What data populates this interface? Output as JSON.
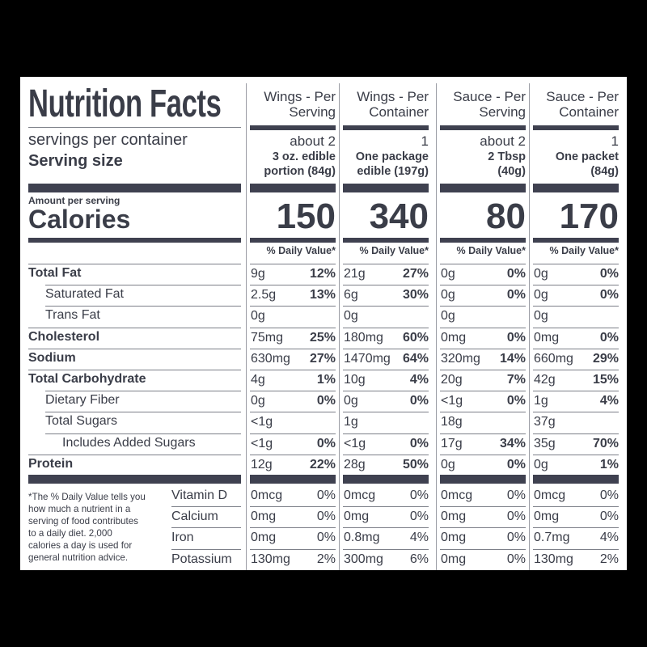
{
  "title": "Nutrition Facts",
  "servings_label": "servings per container",
  "serving_size_label": "Serving size",
  "amount_per_serving": "Amount per serving",
  "calories_label": "Calories",
  "dv_label": "% Daily Value*",
  "columns": [
    {
      "head1": "Wings - Per",
      "head2": "Serving",
      "servings": "about 2",
      "size1": "3 oz. edible",
      "size2": "portion (84g)",
      "calories": "150"
    },
    {
      "head1": "Wings - Per",
      "head2": "Container",
      "servings": "1",
      "size1": "One package",
      "size2": "edible (197g)",
      "calories": "340"
    },
    {
      "head1": "Sauce - Per",
      "head2": "Serving",
      "servings": "about 2",
      "size1": "2 Tbsp",
      "size2": "(40g)",
      "calories": "80"
    },
    {
      "head1": "Sauce - Per",
      "head2": "Container",
      "servings": "1",
      "size1": "One packet",
      "size2": "(84g)",
      "calories": "170"
    }
  ],
  "nutrients": [
    {
      "label": "Total Fat",
      "bold": true,
      "indent": 0,
      "values": [
        [
          "9g",
          "12%"
        ],
        [
          "21g",
          "27%"
        ],
        [
          "0g",
          "0%"
        ],
        [
          "0g",
          "0%"
        ]
      ]
    },
    {
      "label": "Saturated Fat",
      "bold": false,
      "indent": 1,
      "values": [
        [
          "2.5g",
          "13%"
        ],
        [
          "6g",
          "30%"
        ],
        [
          "0g",
          "0%"
        ],
        [
          "0g",
          "0%"
        ]
      ]
    },
    {
      "label": "Trans Fat",
      "bold": false,
      "indent": 1,
      "values": [
        [
          "0g",
          ""
        ],
        [
          "0g",
          ""
        ],
        [
          "0g",
          ""
        ],
        [
          "0g",
          ""
        ]
      ]
    },
    {
      "label": "Cholesterol",
      "bold": true,
      "indent": 0,
      "values": [
        [
          "75mg",
          "25%"
        ],
        [
          "180mg",
          "60%"
        ],
        [
          "0mg",
          "0%"
        ],
        [
          "0mg",
          "0%"
        ]
      ]
    },
    {
      "label": "Sodium",
      "bold": true,
      "indent": 0,
      "values": [
        [
          "630mg",
          "27%"
        ],
        [
          "1470mg",
          "64%"
        ],
        [
          "320mg",
          "14%"
        ],
        [
          "660mg",
          "29%"
        ]
      ]
    },
    {
      "label": "Total Carbohydrate",
      "bold": true,
      "indent": 0,
      "values": [
        [
          "4g",
          "1%"
        ],
        [
          "10g",
          "4%"
        ],
        [
          "20g",
          "7%"
        ],
        [
          "42g",
          "15%"
        ]
      ]
    },
    {
      "label": "Dietary Fiber",
      "bold": false,
      "indent": 1,
      "values": [
        [
          "0g",
          "0%"
        ],
        [
          "0g",
          "0%"
        ],
        [
          "<1g",
          "0%"
        ],
        [
          "1g",
          "4%"
        ]
      ]
    },
    {
      "label": "Total Sugars",
      "bold": false,
      "indent": 1,
      "values": [
        [
          "<1g",
          ""
        ],
        [
          "1g",
          ""
        ],
        [
          "18g",
          ""
        ],
        [
          "37g",
          ""
        ]
      ]
    },
    {
      "label": "Includes Added Sugars",
      "bold": false,
      "indent": 2,
      "values": [
        [
          "<1g",
          "0%"
        ],
        [
          "<1g",
          "0%"
        ],
        [
          "17g",
          "34%"
        ],
        [
          "35g",
          "70%"
        ]
      ]
    },
    {
      "label": "Protein",
      "bold": true,
      "indent": 0,
      "values": [
        [
          "12g",
          "22%"
        ],
        [
          "28g",
          "50%"
        ],
        [
          "0g",
          "0%"
        ],
        [
          "0g",
          "1%"
        ]
      ]
    }
  ],
  "vitamins": [
    {
      "label": "Vitamin D",
      "values": [
        [
          "0mcg",
          "0%"
        ],
        [
          "0mcg",
          "0%"
        ],
        [
          "0mcg",
          "0%"
        ],
        [
          "0mcg",
          "0%"
        ]
      ]
    },
    {
      "label": "Calcium",
      "values": [
        [
          "0mg",
          "0%"
        ],
        [
          "0mg",
          "0%"
        ],
        [
          "0mg",
          "0%"
        ],
        [
          "0mg",
          "0%"
        ]
      ]
    },
    {
      "label": "Iron",
      "values": [
        [
          "0mg",
          "0%"
        ],
        [
          "0.8mg",
          "4%"
        ],
        [
          "0mg",
          "0%"
        ],
        [
          "0.7mg",
          "4%"
        ]
      ]
    },
    {
      "label": "Potassium",
      "values": [
        [
          "130mg",
          "2%"
        ],
        [
          "300mg",
          "6%"
        ],
        [
          "0mg",
          "0%"
        ],
        [
          "130mg",
          "2%"
        ]
      ]
    }
  ],
  "footnote": [
    "*The % Daily Value tells you",
    "how much a nutrient in a",
    "serving of food contributes",
    "to a daily diet. 2,000",
    "calories a day is used for",
    "general nutrition advice."
  ]
}
